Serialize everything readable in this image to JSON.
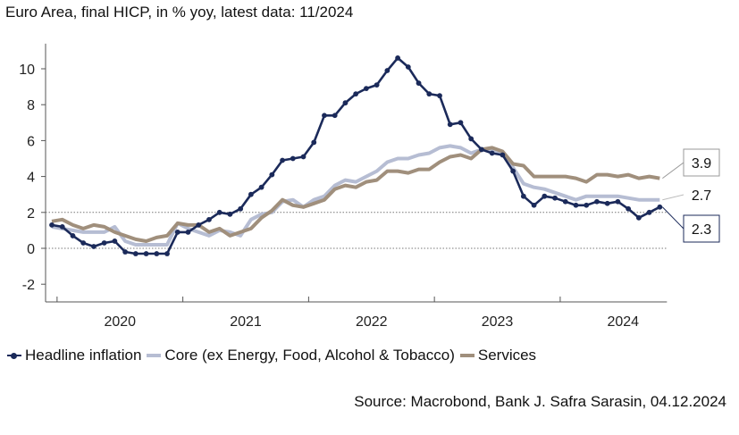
{
  "chart_data": {
    "type": "line",
    "title": "Euro Area, final HICP, in % yoy, latest data: 11/2024",
    "source": "Source: Macrobond, Bank J. Safra Sarasin, 04.12.2024",
    "xlabel": "",
    "ylabel": "",
    "ylim": [
      -3,
      11
    ],
    "y_ticks": [
      "-2",
      "0",
      "2",
      "4",
      "6",
      "8",
      "10"
    ],
    "x_ticks": [
      "2020",
      "2021",
      "2022",
      "2023",
      "2024"
    ],
    "x_start": "2019-12",
    "x_end": "2024-11",
    "reference_line": 2,
    "legend_position": "bottom",
    "series": [
      {
        "name": "Headline inflation",
        "color": "#1b2a5a",
        "marker": "circle",
        "end_label": "2.3",
        "values": [
          1.3,
          1.2,
          0.7,
          0.3,
          0.1,
          0.3,
          0.4,
          -0.2,
          -0.3,
          -0.3,
          -0.3,
          -0.3,
          0.9,
          0.9,
          1.3,
          1.6,
          2.0,
          1.9,
          2.2,
          3.0,
          3.4,
          4.1,
          4.9,
          5.0,
          5.1,
          5.9,
          7.4,
          7.4,
          8.1,
          8.6,
          8.9,
          9.1,
          9.9,
          10.6,
          10.1,
          9.2,
          8.6,
          8.5,
          6.9,
          7.0,
          6.1,
          5.5,
          5.3,
          5.2,
          4.3,
          2.9,
          2.4,
          2.9,
          2.8,
          2.6,
          2.4,
          2.4,
          2.6,
          2.5,
          2.6,
          2.2,
          1.7,
          2.0,
          2.3
        ]
      },
      {
        "name": "Core (ex Energy, Food, Alcohol & Tobacco)",
        "color": "#b6bdd3",
        "marker": "none",
        "end_label": "2.7",
        "values": [
          1.2,
          1.1,
          1.0,
          0.9,
          0.9,
          0.9,
          1.2,
          0.4,
          0.2,
          0.2,
          0.2,
          0.2,
          1.4,
          1.1,
          0.9,
          0.7,
          1.0,
          0.9,
          0.7,
          1.6,
          1.9,
          2.0,
          2.6,
          2.7,
          2.3,
          2.7,
          2.9,
          3.5,
          3.8,
          3.7,
          4.0,
          4.3,
          4.8,
          5.0,
          5.0,
          5.2,
          5.3,
          5.6,
          5.7,
          5.6,
          5.3,
          5.5,
          5.5,
          5.3,
          4.5,
          3.6,
          3.4,
          3.3,
          3.1,
          2.9,
          2.7,
          2.9,
          2.9,
          2.9,
          2.9,
          2.8,
          2.7,
          2.7,
          2.7
        ]
      },
      {
        "name": "Services",
        "color": "#a08f7c",
        "marker": "none",
        "end_label": "3.9",
        "values": [
          1.5,
          1.6,
          1.3,
          1.1,
          1.3,
          1.2,
          0.9,
          0.7,
          0.5,
          0.4,
          0.6,
          0.7,
          1.4,
          1.3,
          1.3,
          0.9,
          1.1,
          0.7,
          0.9,
          1.1,
          1.7,
          2.1,
          2.7,
          2.4,
          2.3,
          2.5,
          2.7,
          3.3,
          3.5,
          3.4,
          3.7,
          3.8,
          4.3,
          4.3,
          4.2,
          4.4,
          4.4,
          4.8,
          5.1,
          5.2,
          5.0,
          5.5,
          5.6,
          5.4,
          4.7,
          4.6,
          4.0,
          4.0,
          4.0,
          4.0,
          3.9,
          3.7,
          4.1,
          4.1,
          4.0,
          4.1,
          3.9,
          4.0,
          3.9
        ]
      }
    ]
  }
}
